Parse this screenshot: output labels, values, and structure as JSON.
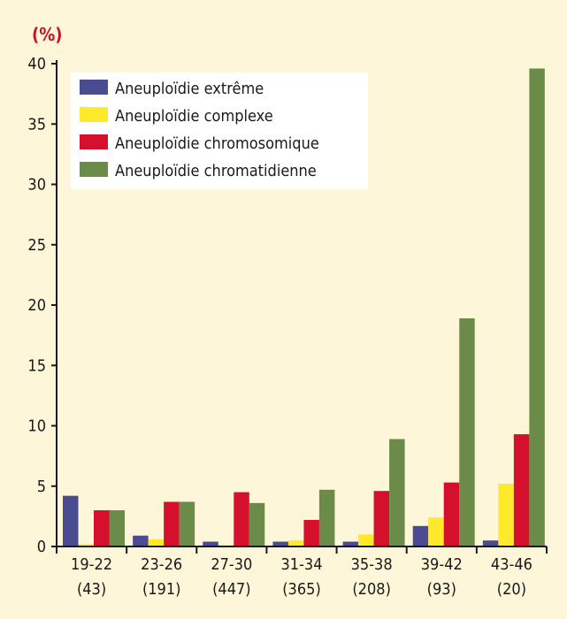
{
  "chart_data": {
    "type": "bar",
    "unit_label": "(%)",
    "categories": [
      "19-22",
      "23-26",
      "27-30",
      "31-34",
      "35-38",
      "39-42",
      "43-46"
    ],
    "category_counts": [
      "(43)",
      "(191)",
      "(447)",
      "(365)",
      "(208)",
      "(93)",
      "(20)"
    ],
    "ylim": [
      0,
      40
    ],
    "yticks": [
      "0",
      "5",
      "10",
      "15",
      "20",
      "25",
      "30",
      "35",
      "40"
    ],
    "legend_position": "top-left",
    "grid": false,
    "series": [
      {
        "name": "Aneuploïdie extrême",
        "color": "#4b4b91",
        "values": [
          4.2,
          0.9,
          0.4,
          0.4,
          0.4,
          1.7,
          0.5
        ]
      },
      {
        "name": "Aneuploïdie complexe",
        "color": "#ffe92a",
        "values": [
          0.2,
          0.6,
          0.1,
          0.5,
          1.0,
          2.4,
          5.2
        ]
      },
      {
        "name": "Aneuploïdie chromosomique",
        "color": "#d4102d",
        "values": [
          3.0,
          3.7,
          4.5,
          2.2,
          4.6,
          5.3,
          9.3
        ]
      },
      {
        "name": "Aneuploïdie chromatidienne",
        "color": "#6b8c49",
        "values": [
          3.0,
          3.7,
          3.6,
          4.7,
          8.9,
          18.9,
          39.6
        ]
      }
    ]
  }
}
